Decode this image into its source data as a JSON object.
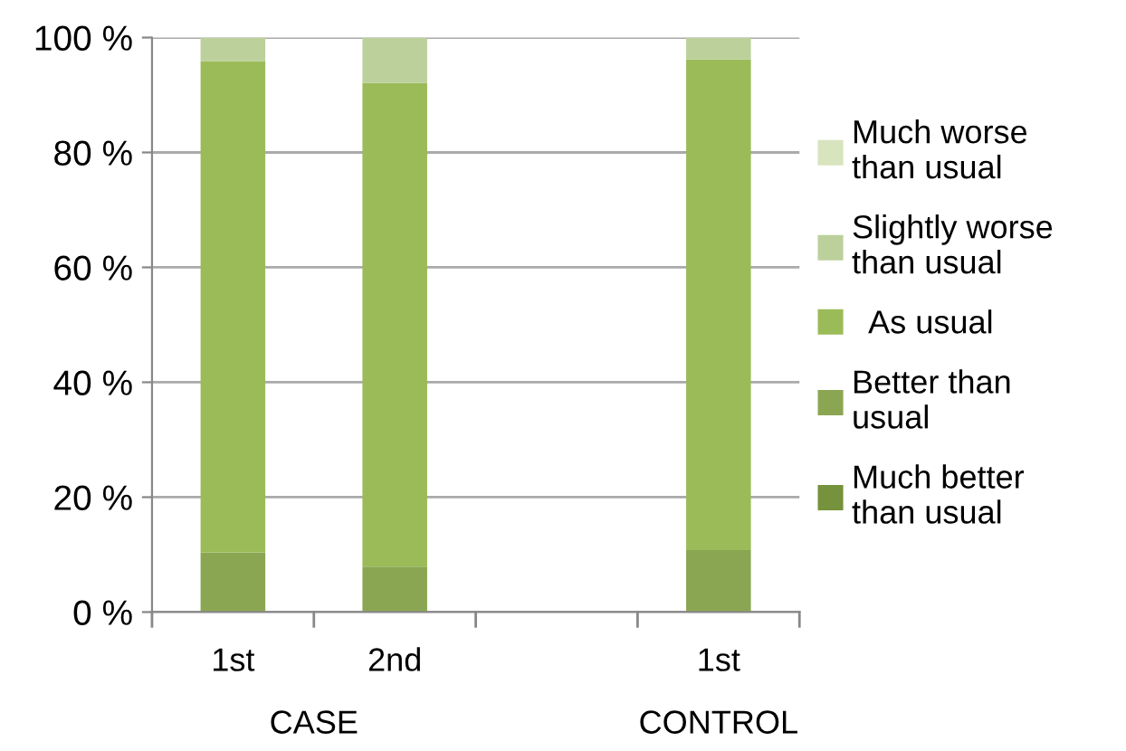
{
  "chart_data": {
    "type": "bar",
    "stacked": true,
    "categories": [
      "1st",
      "2nd",
      null,
      "1st"
    ],
    "series": [
      {
        "name": "Much better than usual",
        "color": "#76923c",
        "values": [
          0,
          0,
          null,
          0
        ]
      },
      {
        "name": "Better than usual",
        "color": "#8aa652",
        "values": [
          10.4,
          7.9,
          null,
          10.8
        ]
      },
      {
        "name": " As usual",
        "color": "#9bbb59",
        "values": [
          85.5,
          84.2,
          null,
          85.4
        ]
      },
      {
        "name": "Slightly worse than usual",
        "color": "#bcd09b",
        "values": [
          4.1,
          7.9,
          null,
          3.8
        ]
      },
      {
        "name": "Much worse than usual",
        "color": "#d7e4bd",
        "values": [
          0,
          0,
          null,
          0
        ]
      }
    ],
    "ylim": [
      0,
      100
    ],
    "yticks": [
      {
        "value": 0,
        "label": "0 %"
      },
      {
        "value": 20,
        "label": "20 %"
      },
      {
        "value": 40,
        "label": "40 %"
      },
      {
        "value": 60,
        "label": "60 %"
      },
      {
        "value": 80,
        "label": "80 %"
      },
      {
        "value": 100,
        "label": "100 %"
      }
    ],
    "grid": "y",
    "legend": "right",
    "annotations": [
      "CASE",
      "CONTROL"
    ]
  }
}
